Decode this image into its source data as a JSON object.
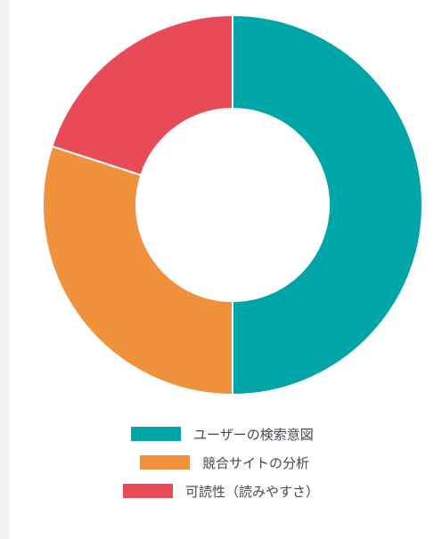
{
  "chart_data": {
    "type": "pie",
    "style": "donut",
    "categories": [
      "ユーザーの検索意図",
      "競合サイトの分析",
      "可読性（読みやすさ）"
    ],
    "values": [
      50,
      30,
      20
    ],
    "colors": [
      "#00a5a7",
      "#f0913b",
      "#e84b57"
    ],
    "legend_placement": "bottom"
  }
}
